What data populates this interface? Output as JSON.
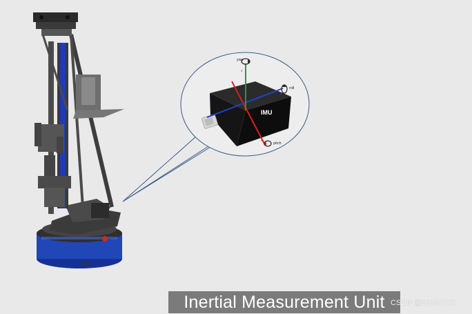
{
  "caption": {
    "text": "Inertial Measurement Unit"
  },
  "watermark": {
    "text": "CSDN @2345VOR"
  },
  "imu_callout": {
    "module_label": "IMU",
    "axes": {
      "yaw": "yaw",
      "roll": "roll",
      "pitch": "pitch",
      "z": "z",
      "x": "x",
      "y": "y"
    }
  },
  "colors": {
    "background": "#e9e9e9",
    "robot_base_blue": "#1f3fb0",
    "frame_dark": "#3a3a3a",
    "axis_red": "#d42020",
    "axis_blue": "#2342c8",
    "axis_green": "#2a9a2a",
    "caption_bg": "#7b7b7b"
  }
}
